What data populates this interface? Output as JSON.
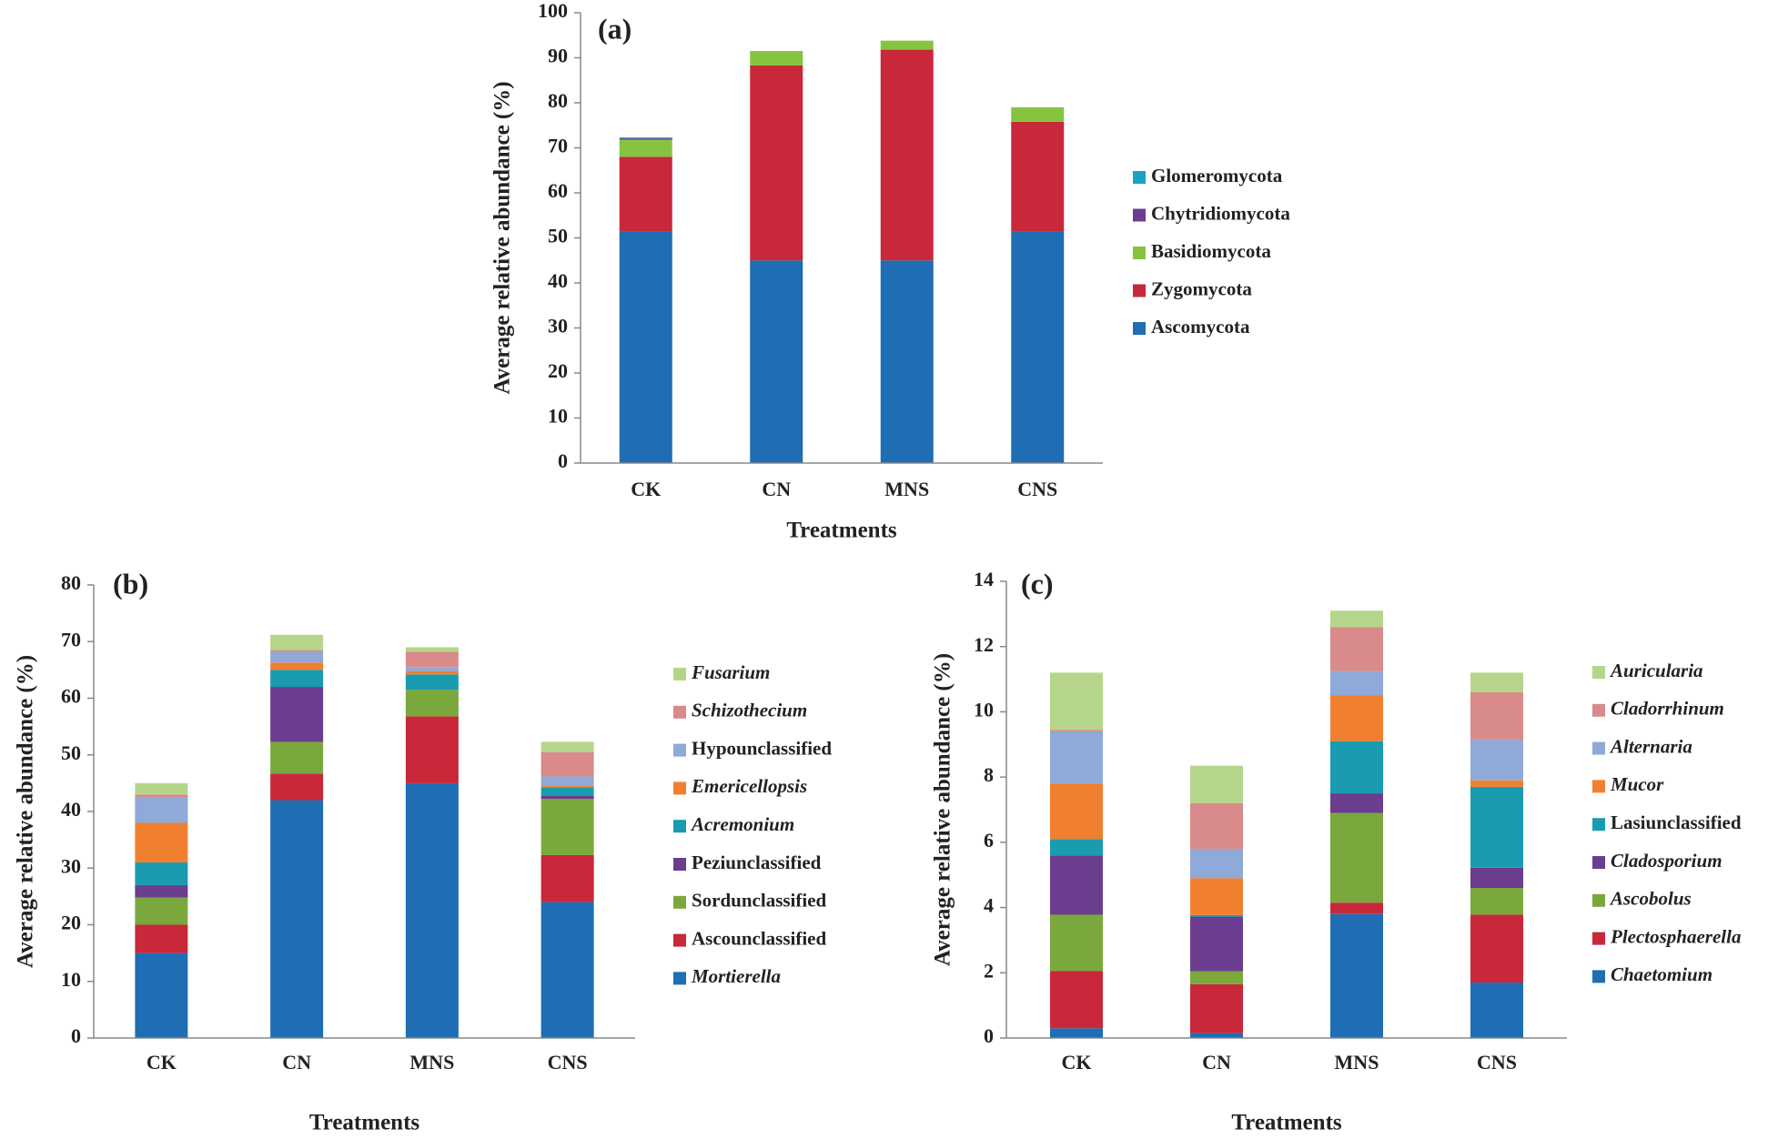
{
  "chart_data": [
    {
      "type": "bar",
      "stacked": true,
      "label": "(a)",
      "xlabel": "Treatments",
      "ylabel": "Average relative abundance (%)",
      "categories": [
        "CK",
        "CN",
        "MNS",
        "CNS"
      ],
      "ylim": [
        0,
        100
      ],
      "yticks": [
        0,
        10,
        20,
        30,
        40,
        50,
        60,
        70,
        80,
        90,
        100
      ],
      "series": [
        {
          "name": "Ascomycota",
          "color": "#1f6db3",
          "italic": false,
          "values": [
            51.5,
            45,
            45,
            51.5
          ]
        },
        {
          "name": "Zygomycota",
          "color": "#c8283a",
          "italic": false,
          "values": [
            16.5,
            43.3,
            46.8,
            24.3
          ]
        },
        {
          "name": "Basidiomycota",
          "color": "#86c440",
          "italic": false,
          "values": [
            3.8,
            3.2,
            2,
            3.2
          ]
        },
        {
          "name": "Chytridiomycota",
          "color": "#6a3d8f",
          "italic": false,
          "values": [
            0.3,
            0,
            0,
            0
          ]
        },
        {
          "name": "Glomeromycota",
          "color": "#1aa3c0",
          "italic": false,
          "values": [
            0.2,
            0,
            0,
            0
          ]
        }
      ]
    },
    {
      "type": "bar",
      "stacked": true,
      "label": "(b)",
      "xlabel": "Treatments",
      "ylabel": "Average relative abundance (%)",
      "categories": [
        "CK",
        "CN",
        "MNS",
        "CNS"
      ],
      "ylim": [
        0,
        80
      ],
      "yticks": [
        0,
        10,
        20,
        30,
        40,
        50,
        60,
        70,
        80
      ],
      "series": [
        {
          "name": "Mortierella",
          "color": "#1f6db3",
          "italic": true,
          "values": [
            15,
            42,
            45,
            24
          ]
        },
        {
          "name": "Ascounclassified",
          "color": "#c8283a",
          "italic": false,
          "values": [
            5,
            4.7,
            11.8,
            8.3
          ]
        },
        {
          "name": "Sordunclassified",
          "color": "#7aa83c",
          "italic": false,
          "values": [
            4.8,
            5.6,
            4.7,
            9.9
          ]
        },
        {
          "name": "Peziunclassified",
          "color": "#6a3d8f",
          "italic": false,
          "values": [
            2.2,
            9.7,
            0,
            0.6
          ]
        },
        {
          "name": "Acremonium",
          "color": "#1a9bb0",
          "italic": true,
          "values": [
            4,
            3,
            2.7,
            1.5
          ]
        },
        {
          "name": "Emericellopsis",
          "color": "#f08030",
          "italic": true,
          "values": [
            7,
            1.3,
            0.6,
            0.3
          ]
        },
        {
          "name": "Hypounclassified",
          "color": "#8fa9d8",
          "italic": false,
          "values": [
            4.5,
            1.9,
            0.7,
            1.6
          ]
        },
        {
          "name": "Schizothecium",
          "color": "#d98a8a",
          "italic": true,
          "values": [
            0.5,
            0.3,
            2.7,
            4.3
          ]
        },
        {
          "name": "Fusarium",
          "color": "#b5d68a",
          "italic": true,
          "values": [
            2,
            2.7,
            0.8,
            1.8
          ]
        }
      ]
    },
    {
      "type": "bar",
      "stacked": true,
      "label": "(c)",
      "xlabel": "Treatments",
      "ylabel": "Average relative abundance (%)",
      "categories": [
        "CK",
        "CN",
        "MNS",
        "CNS"
      ],
      "ylim": [
        0,
        14
      ],
      "yticks": [
        0,
        2,
        4,
        6,
        8,
        10,
        12,
        14
      ],
      "series": [
        {
          "name": "Chaetomium",
          "color": "#1f6db3",
          "italic": true,
          "values": [
            0.3,
            0.15,
            3.8,
            1.7
          ]
        },
        {
          "name": "Plectosphaerella",
          "color": "#c8283a",
          "italic": true,
          "values": [
            1.75,
            1.5,
            0.35,
            2.08
          ]
        },
        {
          "name": "Ascobolus",
          "color": "#7aa83c",
          "italic": true,
          "values": [
            1.73,
            0.4,
            2.75,
            0.82
          ]
        },
        {
          "name": "Cladosporium",
          "color": "#6a3d8f",
          "italic": true,
          "values": [
            1.82,
            1.67,
            0.6,
            0.62
          ]
        },
        {
          "name": "Lasiunclassified",
          "color": "#1a9bb0",
          "italic": false,
          "values": [
            0.5,
            0.05,
            1.6,
            2.48
          ]
        },
        {
          "name": "Mucor",
          "color": "#f08030",
          "italic": true,
          "values": [
            1.7,
            1.13,
            1.4,
            0.2
          ]
        },
        {
          "name": "Alternaria",
          "color": "#8fa9d8",
          "italic": true,
          "values": [
            1.6,
            0.9,
            0.75,
            1.25
          ]
        },
        {
          "name": "Cladorrhinum",
          "color": "#d98a8a",
          "italic": true,
          "values": [
            0.05,
            1.4,
            1.35,
            1.45
          ]
        },
        {
          "name": "Auricularia",
          "color": "#b5d68a",
          "italic": true,
          "values": [
            1.75,
            1.15,
            0.5,
            0.6
          ]
        }
      ]
    }
  ]
}
